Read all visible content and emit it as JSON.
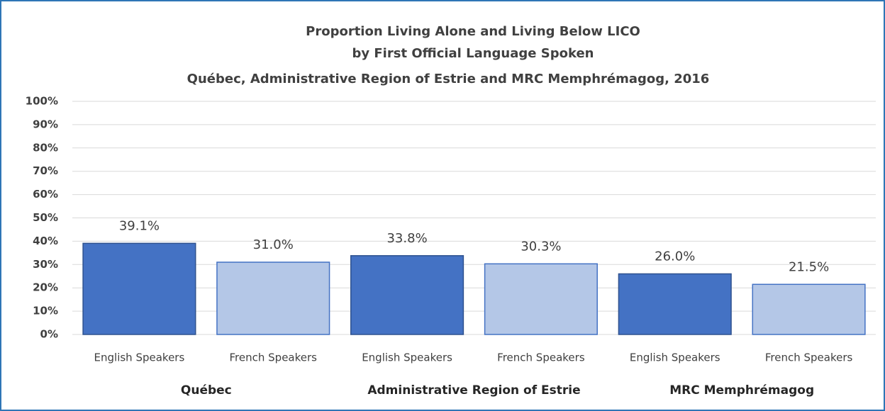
{
  "chart_data": {
    "type": "bar",
    "title": [
      "Proportion Living Alone and Living Below LICO",
      "by First Official Language Spoken",
      "Québec, Administrative Region of Estrie and MRC Memphrémagog, 2016"
    ],
    "categories": [
      "English Speakers",
      "French Speakers",
      "English Speakers",
      "French Speakers",
      "English Speakers",
      "French Speakers"
    ],
    "groups": [
      "Québec",
      "Administrative Region of Estrie",
      "MRC Memphrémagog"
    ],
    "values": [
      39.1,
      31.0,
      33.8,
      30.3,
      26.0,
      21.5
    ],
    "value_labels": [
      "39.1%",
      "31.0%",
      "33.8%",
      "30.3%",
      "26.0%",
      "21.5%"
    ],
    "colors": [
      "#4472c4",
      "#b4c7e7",
      "#4472c4",
      "#b4c7e7",
      "#4472c4",
      "#b4c7e7"
    ],
    "ylim": [
      0,
      100
    ],
    "yticks": [
      {
        "value": 0,
        "label": "0%"
      },
      {
        "value": 10,
        "label": "10%"
      },
      {
        "value": 20,
        "label": "20%"
      },
      {
        "value": 30,
        "label": "30%"
      },
      {
        "value": 40,
        "label": "40%"
      },
      {
        "value": 50,
        "label": "50%"
      },
      {
        "value": 60,
        "label": "60%"
      },
      {
        "value": 70,
        "label": "70%"
      },
      {
        "value": 80,
        "label": "80%"
      },
      {
        "value": 90,
        "label": "90%"
      },
      {
        "value": 100,
        "label": "100%"
      }
    ],
    "grid": true
  }
}
